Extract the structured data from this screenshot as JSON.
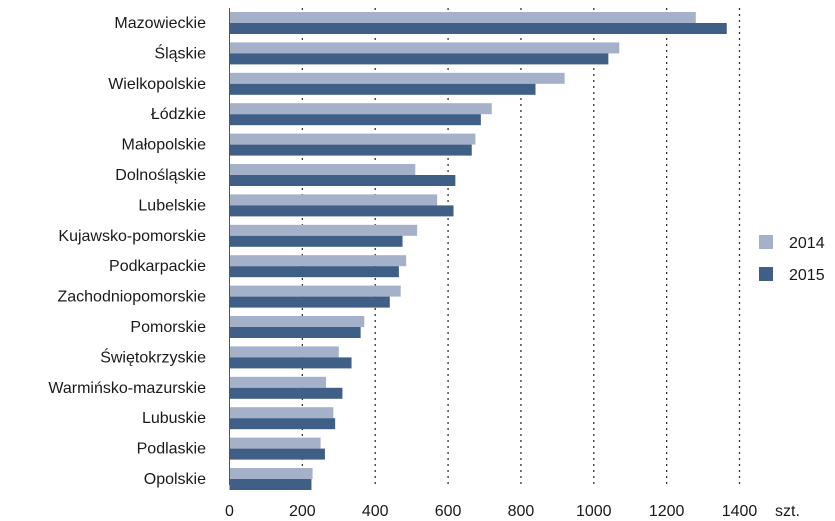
{
  "chart_data": {
    "type": "bar",
    "orientation": "horizontal",
    "categories": [
      "Mazowieckie",
      "Śląskie",
      "Wielkopolskie",
      "Łódzkie",
      "Małopolskie",
      "Dolnośląskie",
      "Lubelskie",
      "Kujawsko-pomorskie",
      "Podkarpackie",
      "Zachodniopomorskie",
      "Pomorskie",
      "Świętokrzyskie",
      "Warmińsko-mazurskie",
      "Lubuskie",
      "Podlaskie",
      "Opolskie"
    ],
    "series": [
      {
        "name": "2014",
        "color": "#a5b1c8",
        "values": [
          1280,
          1070,
          920,
          720,
          675,
          510,
          570,
          515,
          485,
          470,
          370,
          300,
          265,
          285,
          250,
          228
        ]
      },
      {
        "name": "2015",
        "color": "#3f5f87",
        "values": [
          1365,
          1040,
          840,
          690,
          665,
          620,
          615,
          475,
          465,
          440,
          360,
          335,
          310,
          290,
          262,
          225
        ]
      }
    ],
    "xticks": [
      "0",
      "200",
      "400",
      "600",
      "800",
      "1000",
      "1200",
      "1400"
    ],
    "xunit": "szt.",
    "xlim": [
      0,
      1400
    ],
    "grid": "vertical dotted",
    "legend_position": "right"
  }
}
